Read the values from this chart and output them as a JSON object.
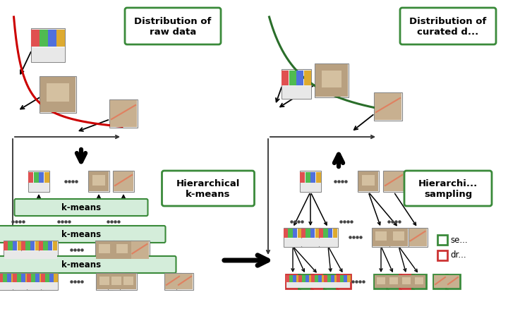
{
  "background_color": "#ffffff",
  "green_box_color": "#d4edda",
  "green_border_color": "#3a8a3a",
  "red_border_color": "#cc3333",
  "curve_color_left": "#cc0000",
  "curve_color_right": "#2a6e2a",
  "arrow_color": "#111111",
  "dist_raw_label": "Distribution of\nraw data",
  "dist_curated_label": "Distribution of\ncurated d...",
  "hierarchical_kmeans_label": "Hierarchical\nk-means",
  "hierarchical_sampling_label": "Hierarchi...\nsampling",
  "legend_selected_label": "se...",
  "legend_dropped_label": "dr..."
}
